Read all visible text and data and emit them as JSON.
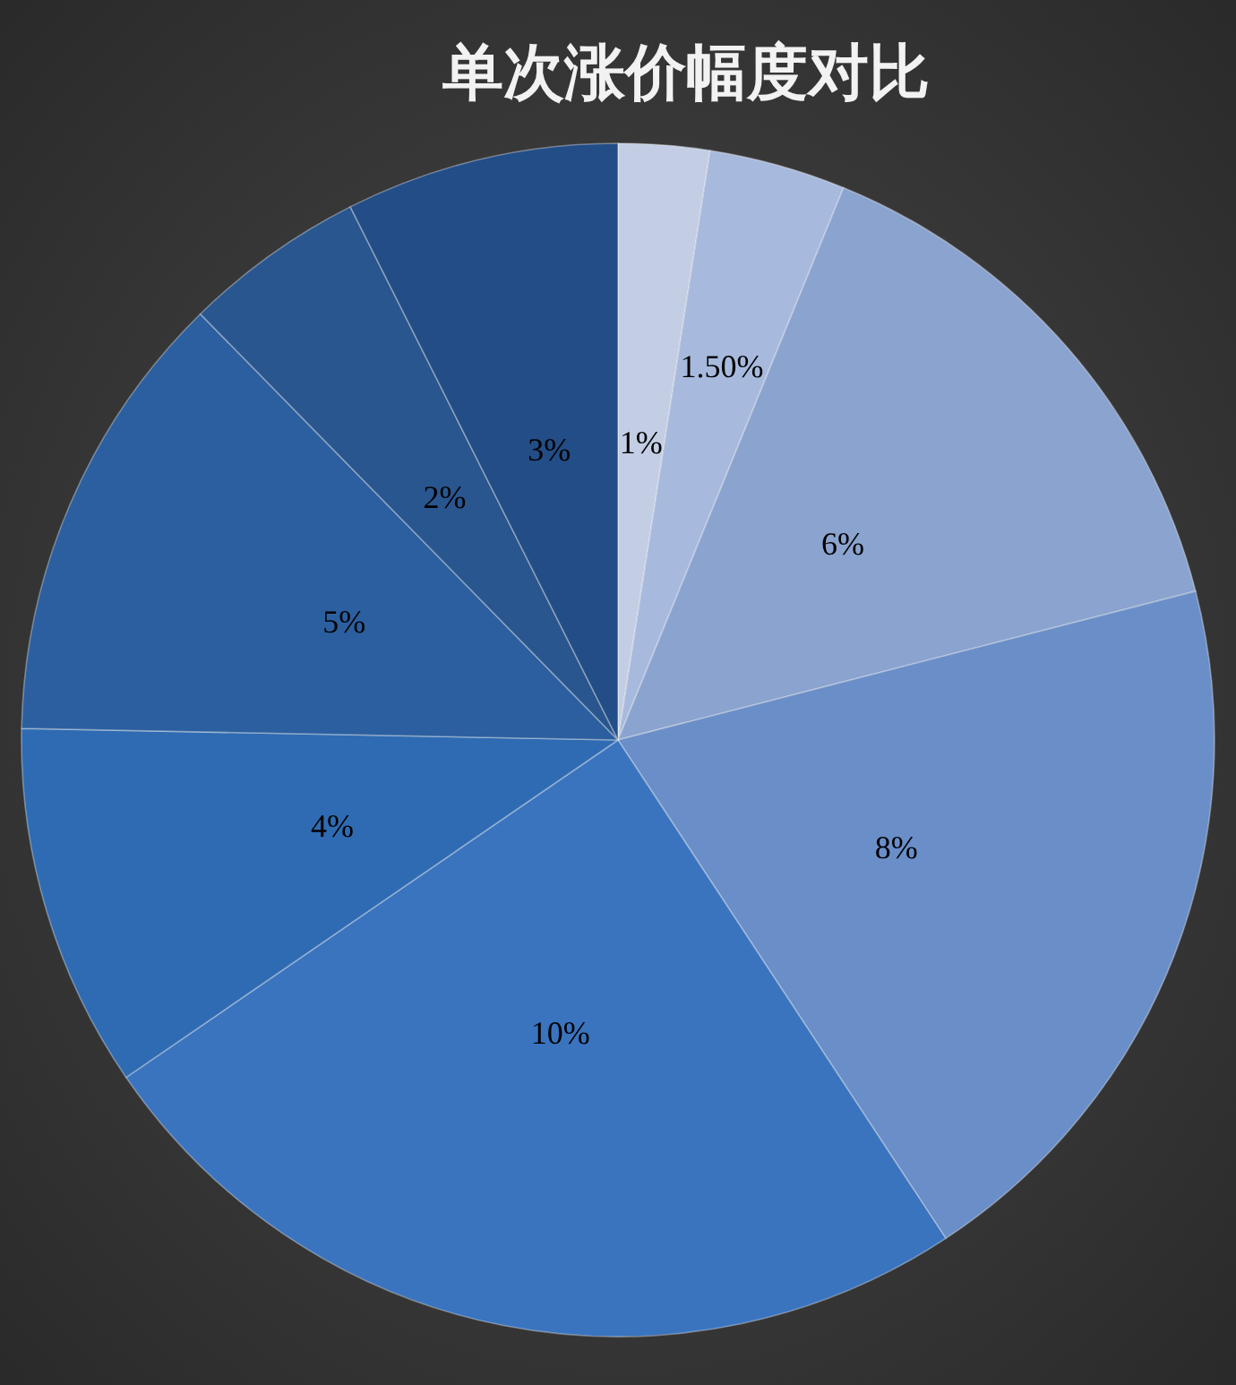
{
  "chart_data": {
    "type": "pie",
    "title": "单次涨价幅度对比",
    "categories": [
      null,
      null,
      null,
      null,
      null,
      null,
      null,
      null,
      null
    ],
    "values": [
      1,
      1.5,
      6,
      8,
      10,
      4,
      5,
      2,
      3
    ],
    "value_labels": [
      "1%",
      "1.50%",
      "6%",
      "8%",
      "10%",
      "4%",
      "5%",
      "2%",
      "3%"
    ],
    "colors": [
      "#c3cee4",
      "#a7badd",
      "#8ba3cf",
      "#6a8ec8",
      "#3a74bf",
      "#2f6bb2",
      "#2c5f9f",
      "#29568f",
      "#234d86"
    ],
    "legend": false
  }
}
